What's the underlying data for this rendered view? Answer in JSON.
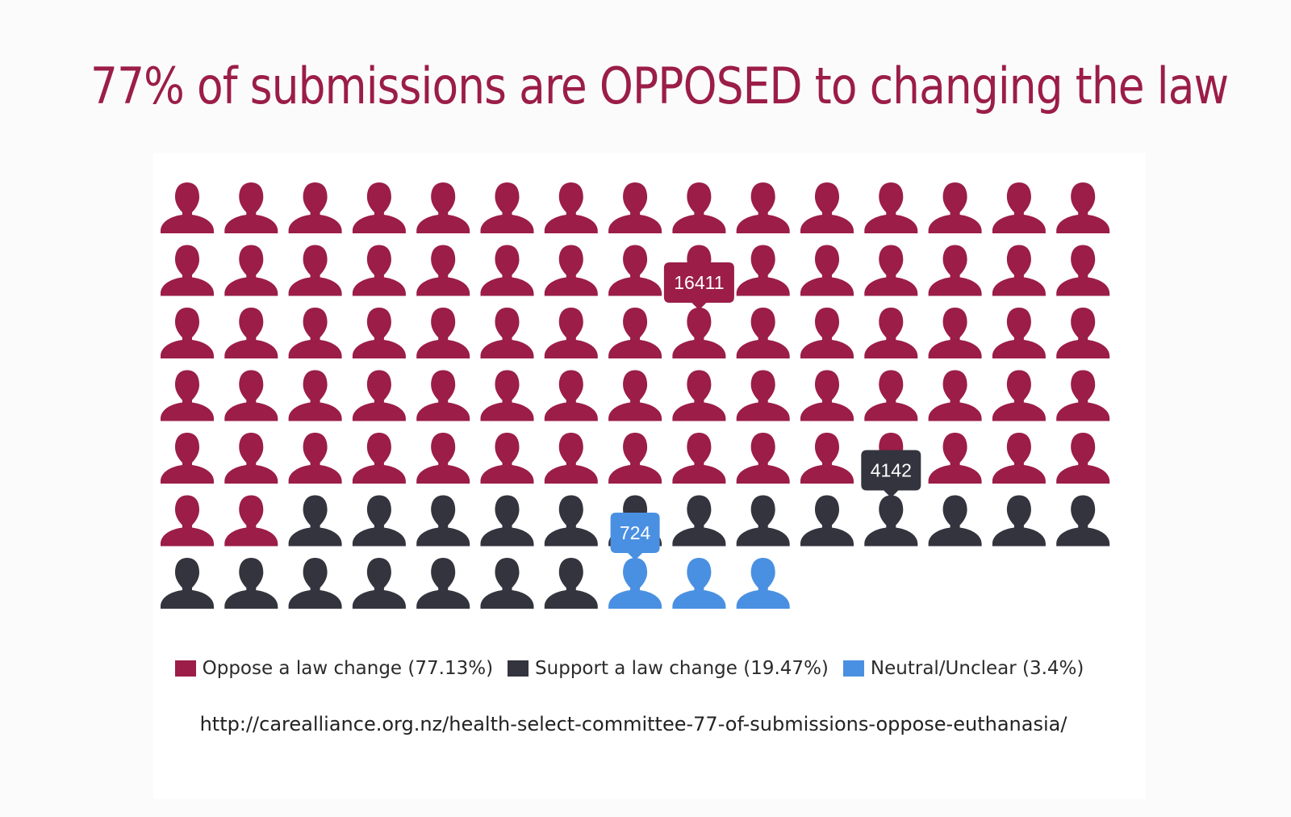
{
  "title": "77% of submissions are OPPOSED to changing the law",
  "source": "http://carealliance.org.nz/health-select-committee-77-of-submissions-oppose-euthanasia/",
  "chart_data": {
    "type": "pictograph",
    "icon": "person-icon",
    "grid": {
      "columns": 15
    },
    "series": [
      {
        "name": "Oppose a law change (77.13%)",
        "value": 16411,
        "icons": 77,
        "color": "#9b1d48"
      },
      {
        "name": "Support a law change (19.47%)",
        "value": 4142,
        "icons": 20,
        "color": "#33343e"
      },
      {
        "name": "Neutral/Unclear (3.4%)",
        "value": 724,
        "icons": 3,
        "color": "#4a90e2"
      }
    ],
    "tooltips": [
      {
        "series": 0,
        "icon_index": 38,
        "label": "16411"
      },
      {
        "series": 1,
        "icon_index": 86,
        "label": "4142"
      },
      {
        "series": 2,
        "icon_index": 97,
        "label": "724"
      }
    ]
  }
}
